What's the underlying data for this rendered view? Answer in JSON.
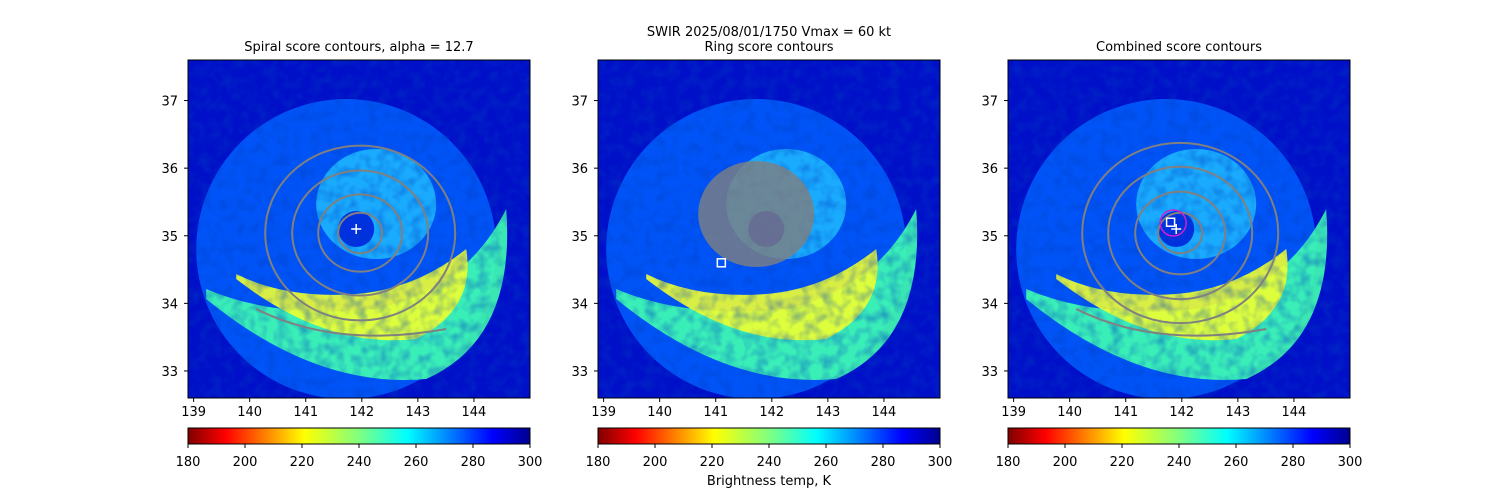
{
  "figure": {
    "suptitle_line1": "SWIR  2025/08/01/1750    Vmax = 60 kt",
    "colorbar_label": "Brightness temp, K"
  },
  "colors": {
    "contour": "#808080",
    "marker": "#ffffff",
    "combined_circle": "#d020d0",
    "cold": "#00008f",
    "warm": "#800000"
  },
  "chart_data": [
    {
      "type": "heatmap",
      "title": "Spiral score contours, alpha = 12.7",
      "xlim": [
        138.9,
        145.0
      ],
      "ylim": [
        32.6,
        37.6
      ],
      "xticks": [
        139,
        140,
        141,
        142,
        143,
        144
      ],
      "yticks": [
        33,
        34,
        35,
        36,
        37
      ],
      "colorbar": {
        "range": [
          180,
          300
        ],
        "ticks": [
          180,
          200,
          220,
          240,
          260,
          280,
          300
        ],
        "colormap": "jet_r"
      },
      "markers": [
        {
          "symbol": "plus",
          "lon": 141.9,
          "lat": 35.1
        }
      ],
      "storm_center": [
        141.9,
        35.1
      ]
    },
    {
      "type": "heatmap",
      "title": "Ring score contours",
      "xlim": [
        138.9,
        145.0
      ],
      "ylim": [
        32.6,
        37.6
      ],
      "xticks": [
        139,
        140,
        141,
        142,
        143,
        144
      ],
      "yticks": [
        33,
        34,
        35,
        36,
        37
      ],
      "colorbar": {
        "range": [
          180,
          300
        ],
        "ticks": [
          180,
          200,
          220,
          240,
          260,
          280,
          300
        ],
        "colormap": "jet_r"
      },
      "markers": [
        {
          "symbol": "square",
          "lon": 141.1,
          "lat": 34.6
        }
      ],
      "storm_center": [
        141.9,
        35.1
      ]
    },
    {
      "type": "heatmap",
      "title": "Combined score contours",
      "xlim": [
        138.9,
        145.0
      ],
      "ylim": [
        32.6,
        37.6
      ],
      "xticks": [
        139,
        140,
        141,
        142,
        143,
        144
      ],
      "yticks": [
        33,
        34,
        35,
        36,
        37
      ],
      "colorbar": {
        "range": [
          180,
          300
        ],
        "ticks": [
          180,
          200,
          220,
          240,
          260,
          280,
          300
        ],
        "colormap": "jet_r"
      },
      "markers": [
        {
          "symbol": "square",
          "lon": 141.8,
          "lat": 35.2
        },
        {
          "symbol": "plus",
          "lon": 141.9,
          "lat": 35.1
        }
      ],
      "storm_center": [
        141.9,
        35.1
      ]
    }
  ]
}
